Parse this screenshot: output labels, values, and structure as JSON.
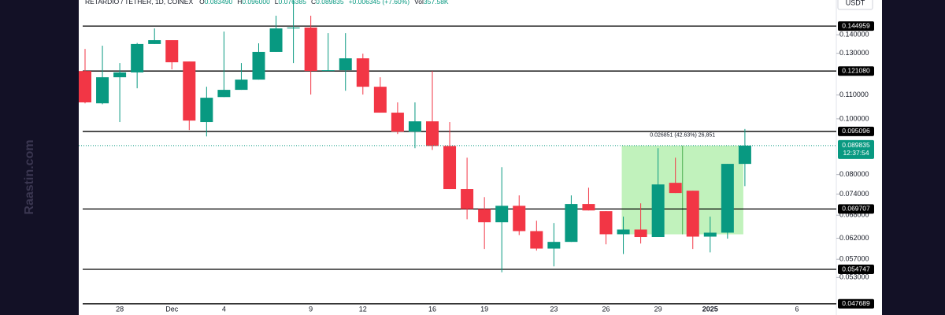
{
  "chart_data": {
    "type": "candlestick",
    "header": {
      "symbol": "RETARDIO / TETHER, 1D, COINEX",
      "ohlc": [
        {
          "key": "O",
          "value": "0.083490"
        },
        {
          "key": "H",
          "value": "0.096000"
        },
        {
          "key": "L",
          "value": "0.076385"
        },
        {
          "key": "C",
          "value": "0.089835"
        }
      ],
      "change": "+0.006345 (+7.60%)",
      "volume_key": "Vol",
      "volume": "357.58K"
    },
    "currency": "USDT",
    "watermark": "Raastin.com",
    "countdown": "12:37:54",
    "up_color": "#089981",
    "down_color": "#f23645",
    "log_scale": true,
    "categories": [
      null,
      null,
      "28",
      null,
      null,
      "Dec",
      null,
      null,
      "4",
      null,
      null,
      null,
      null,
      "9",
      null,
      null,
      "12",
      null,
      null,
      null,
      "16",
      null,
      null,
      "19",
      null,
      null,
      null,
      "23",
      null,
      null,
      "26",
      null,
      null,
      "29",
      null,
      null,
      "2025",
      null,
      null,
      null,
      null,
      "6",
      null
    ],
    "open": [
      0.1211,
      0.1064,
      0.1181,
      0.1204,
      0.1349,
      0.137,
      0.1258,
      0.0987,
      0.1091,
      0.1123,
      0.117,
      0.1307,
      0.1436,
      0.1441,
      0.1211,
      0.1215,
      0.1274,
      0.1137,
      0.1025,
      0.095,
      0.099,
      0.0897,
      0.0755,
      0.0697,
      0.0661,
      0.0706,
      0.0638,
      0.0595,
      0.0611,
      0.0711,
      0.0691,
      0.063,
      0.0642,
      0.0623,
      0.0774,
      0.075,
      0.0624,
      0.0634,
      0.08349,
      null,
      null,
      null,
      null
    ],
    "high": [
      0.1323,
      0.134,
      0.125,
      0.1355,
      0.1436,
      0.137,
      0.1258,
      0.1137,
      0.1418,
      0.125,
      0.1353,
      0.1511,
      0.1609,
      0.1511,
      0.1409,
      0.1409,
      0.1298,
      0.1181,
      0.1068,
      0.1068,
      0.1211,
      0.0987,
      0.0856,
      0.0731,
      0.0824,
      0.0736,
      0.0665,
      0.0659,
      0.0736,
      0.0759,
      0.0691,
      0.0676,
      0.0713,
      0.0889,
      0.0856,
      0.075,
      0.0676,
      0.0835,
      0.096,
      null,
      null,
      null,
      null
    ],
    "low": [
      0.1064,
      0.106,
      0.0987,
      0.113,
      0.1349,
      0.1219,
      0.0956,
      0.0932,
      0.1091,
      0.1123,
      0.117,
      0.1307,
      0.125,
      0.1102,
      0.1211,
      0.1119,
      0.1102,
      0.1025,
      0.0941,
      0.0889,
      0.0883,
      0.0755,
      0.0669,
      0.0594,
      0.0541,
      0.0628,
      0.059,
      0.0554,
      0.0611,
      0.0693,
      0.0605,
      0.0582,
      0.0607,
      0.0623,
      0.0743,
      0.0594,
      0.0586,
      0.0619,
      0.076385,
      null,
      null,
      null,
      null
    ],
    "close": [
      0.1068,
      0.1181,
      0.1204,
      0.1349,
      0.137,
      0.1254,
      0.0993,
      0.1088,
      0.1123,
      0.117,
      0.1307,
      0.1436,
      0.1441,
      0.1211,
      0.1215,
      0.1274,
      0.1137,
      0.1025,
      0.095,
      0.099,
      0.0897,
      0.0755,
      0.0697,
      0.0661,
      0.0706,
      0.0638,
      0.0595,
      0.0611,
      0.0711,
      0.0693,
      0.063,
      0.0642,
      0.0623,
      0.0769,
      0.0743,
      0.0624,
      0.0634,
      0.0835,
      0.089835,
      null,
      null,
      null,
      null
    ],
    "ylim": [
      0.0456,
      0.1609
    ],
    "yticks": [
      {
        "value": 0.14,
        "label": "0.140000"
      },
      {
        "value": 0.13,
        "label": "0.130000"
      },
      {
        "value": 0.11,
        "label": "0.110000"
      },
      {
        "value": 0.1,
        "label": "0.100000"
      },
      {
        "value": 0.08,
        "label": "0.080000"
      },
      {
        "value": 0.074,
        "label": "0.074000"
      },
      {
        "value": 0.068,
        "label": "0.068000"
      },
      {
        "value": 0.062,
        "label": "0.062000"
      },
      {
        "value": 0.057,
        "label": "0.057000"
      },
      {
        "value": 0.053,
        "label": "0.053000"
      }
    ],
    "levels": [
      0.144959,
      {
        "value": 0.12108,
        "label": "0.121080"
      },
      0.095096,
      0.069707,
      0.054747,
      0.047689
    ],
    "measure": {
      "label": "0.026851 (42.63%) 26,851",
      "low": 0.062984,
      "high": 0.089835
    }
  }
}
